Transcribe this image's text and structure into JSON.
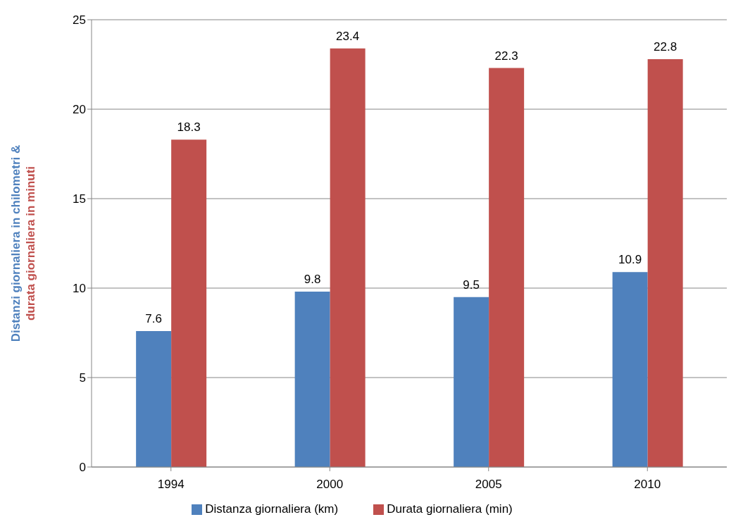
{
  "chart_data": {
    "type": "bar",
    "categories": [
      "1994",
      "2000",
      "2005",
      "2010"
    ],
    "series": [
      {
        "name": "Distanza giornaliera (km)",
        "color": "#4f81bd",
        "values": [
          7.6,
          9.8,
          9.5,
          10.9
        ]
      },
      {
        "name": "Durata giornaliera (min)",
        "color": "#c0504d",
        "values": [
          18.3,
          23.4,
          22.3,
          22.8
        ]
      }
    ],
    "ylabel": "Distanzi giornaliera in chilometri &\ndurata giornaliera in minuti",
    "ylim": [
      0,
      25
    ],
    "yticks": [
      0,
      5,
      10,
      15,
      20,
      25
    ],
    "grid": "y",
    "legend": "bottom",
    "data_labels": true
  }
}
